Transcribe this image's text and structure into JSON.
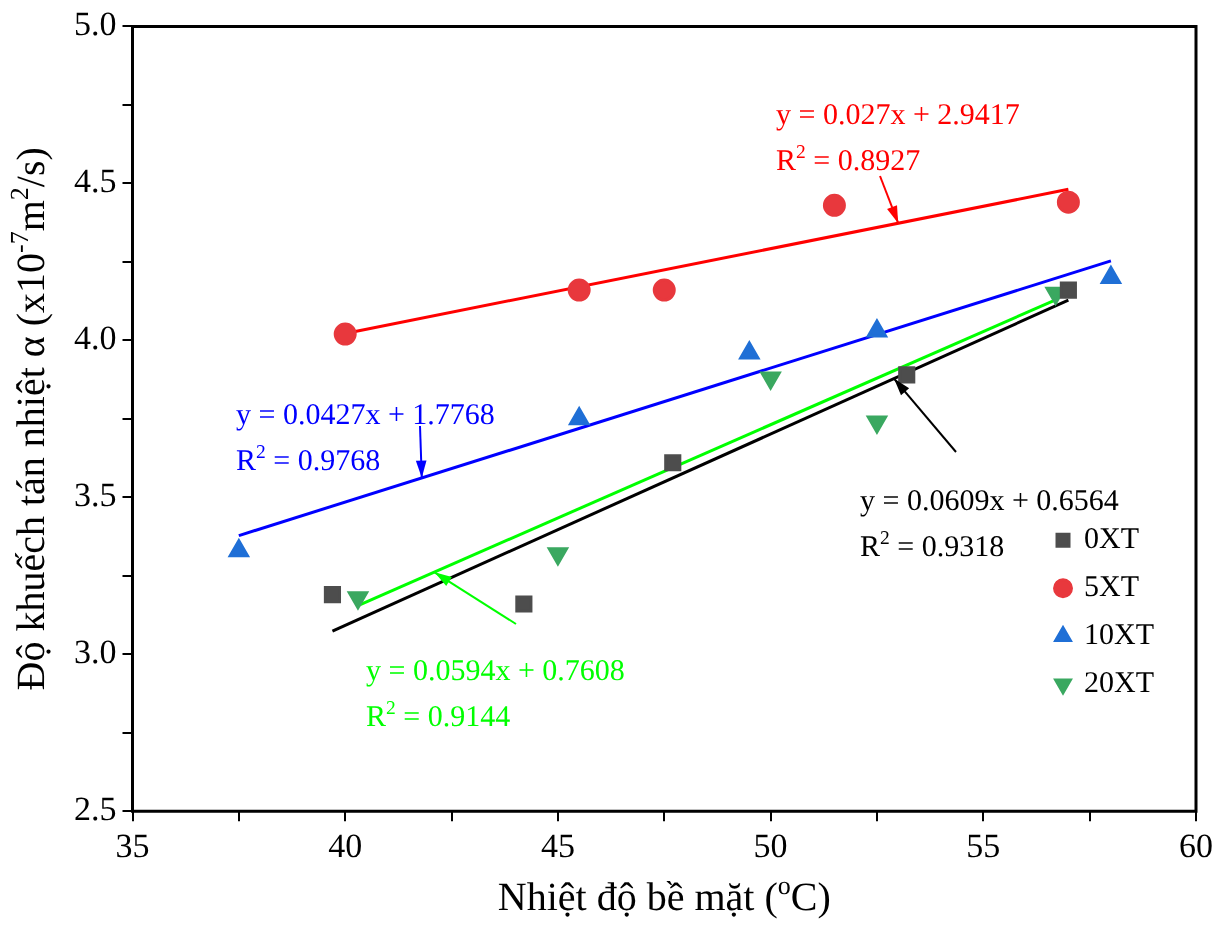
{
  "chart_data": {
    "type": "scatter",
    "xlabel": "Nhiệt độ bề mặt ($^{o}$C)",
    "ylabel": "Độ khuếch tán nhiệt α (x10$^{-7}$m$^{2}$/s)",
    "xlim": [
      35,
      60
    ],
    "xticks": [
      35,
      {
        "value": 37.5,
        "label": null
      },
      40,
      {
        "value": 42.5,
        "label": null
      },
      45,
      {
        "value": 47.5,
        "label": null
      },
      50,
      {
        "value": 52.5,
        "label": null
      },
      55,
      {
        "value": 57.5,
        "label": null
      },
      60
    ],
    "ylim": [
      2.5,
      5.0
    ],
    "yticks": [
      {
        "value": 2.5,
        "label": "2.5"
      },
      {
        "value": 2.75,
        "label": null
      },
      {
        "value": 3.0,
        "label": "3.0"
      },
      {
        "value": 3.25,
        "label": null
      },
      {
        "value": 3.5,
        "label": "3.5"
      },
      {
        "value": 3.75,
        "label": null
      },
      {
        "value": 4.0,
        "label": "4.0"
      },
      {
        "value": 4.25,
        "label": null
      },
      {
        "value": 4.5,
        "label": "4.5"
      },
      {
        "value": 4.75,
        "label": null
      },
      {
        "value": 5.0,
        "label": "5.0"
      }
    ],
    "grid": false,
    "legend": "bottom right",
    "series": [
      {
        "name": "0XT",
        "type": "scatter",
        "marker": "square",
        "color": "#4d4d4d",
        "x": [
          39.7,
          44.2,
          47.7,
          53.2,
          57.0
        ],
        "values": [
          3.19,
          3.16,
          3.61,
          3.89,
          4.16
        ]
      },
      {
        "name": "5XT",
        "type": "scatter",
        "marker": "circle",
        "color": "#e8383d",
        "x": [
          40.0,
          45.5,
          47.5,
          51.5,
          57.0
        ],
        "values": [
          4.02,
          4.16,
          4.16,
          4.43,
          4.44
        ]
      },
      {
        "name": "10XT",
        "type": "scatter",
        "marker": "triangle",
        "color": "#1f6fd6",
        "x": [
          37.5,
          45.5,
          49.5,
          52.5,
          58.0
        ],
        "values": [
          3.33,
          3.75,
          3.96,
          4.03,
          4.2
        ]
      },
      {
        "name": "20XT",
        "type": "scatter",
        "marker": "triangle-down",
        "color": "#3aa860",
        "x": [
          40.3,
          45.0,
          50.0,
          52.5,
          56.7
        ],
        "values": [
          3.18,
          3.32,
          3.88,
          3.74,
          4.15
        ]
      },
      {
        "type": "line",
        "marker": "none",
        "color": "#000000",
        "x": [
          39.7,
          57.0
        ],
        "values": [
          3.074,
          4.128
        ]
      },
      {
        "type": "line",
        "marker": "none",
        "color": "#ff0000",
        "x": [
          40.0,
          57.0
        ],
        "values": [
          4.022,
          4.481
        ]
      },
      {
        "type": "line",
        "marker": "none",
        "color": "#0000ff",
        "x": [
          37.5,
          58.0
        ],
        "values": [
          3.378,
          4.253
        ]
      },
      {
        "type": "line",
        "marker": "none",
        "color": "#00ff00",
        "x": [
          40.3,
          56.7
        ],
        "values": [
          3.155,
          4.129
        ]
      }
    ],
    "annotations": [
      {
        "text": "y = 0.0609x + 0.6564\nR$^{2}$ = 0.9318",
        "x": 52.9,
        "y": 3.878
      },
      {
        "text": "y = 0.027x + 2.9417\nR$^{2}$ = 0.8927",
        "x": 53.0,
        "y": 4.373
      },
      {
        "text": "y = 0.0427x + 1.7768\nR$^{2}$ = 0.9768",
        "x": 41.8,
        "y": 3.562
      },
      {
        "text": "y = 0.0594x + 0.7608\nR$^{2}$ = 0.9144",
        "x": 42.1,
        "y": 3.261
      }
    ]
  }
}
